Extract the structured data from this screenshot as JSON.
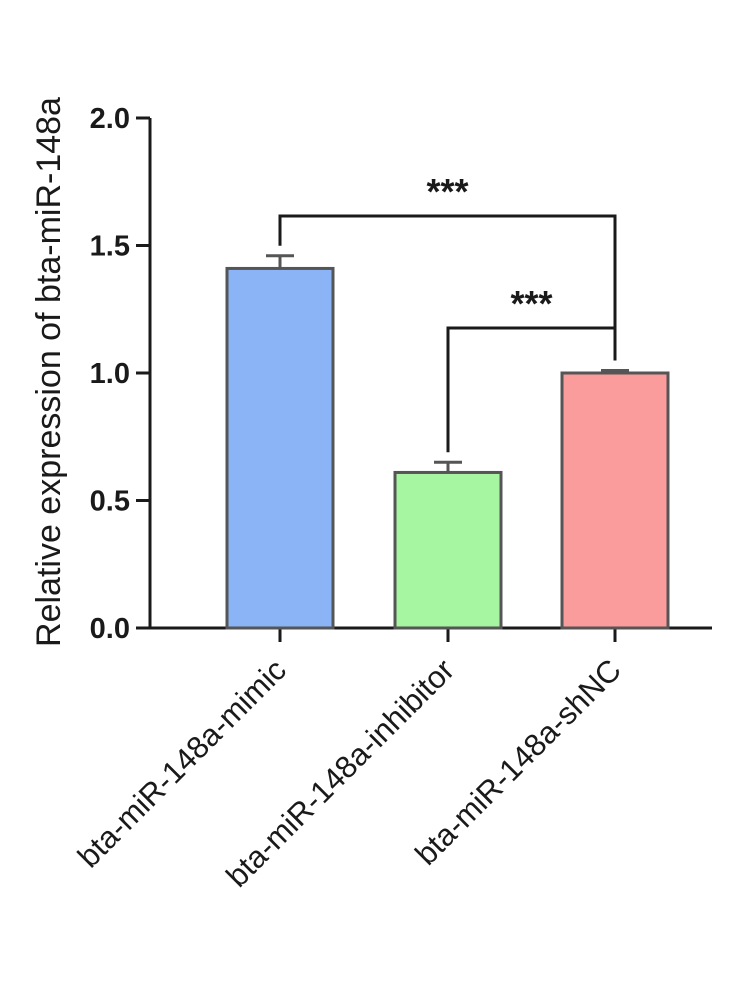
{
  "chart_data": {
    "type": "bar",
    "categories": [
      "bta-miR-148a-mimic",
      "bta-miR-148a-inhibitor",
      "bta-miR-148a-shNC"
    ],
    "values": [
      1.41,
      0.61,
      1.0
    ],
    "errors": [
      0.05,
      0.04,
      0.01
    ],
    "colors": [
      "#8ab4f5",
      "#a6f5a0",
      "#fa9c9c"
    ],
    "bar_edge_color": "#555555",
    "ylabel": "Relative expression of bta-miR-148a",
    "ylim": [
      0,
      2.0
    ],
    "yticks": [
      0.0,
      0.5,
      1.0,
      1.5,
      2.0
    ],
    "ytick_labels": [
      "0.0",
      "0.5",
      "1.0",
      "1.5",
      "2.0"
    ],
    "grid": false,
    "significance": [
      {
        "from": 0,
        "to": 2,
        "label": "***"
      },
      {
        "from": 1,
        "to": 2,
        "label": "***"
      }
    ]
  }
}
